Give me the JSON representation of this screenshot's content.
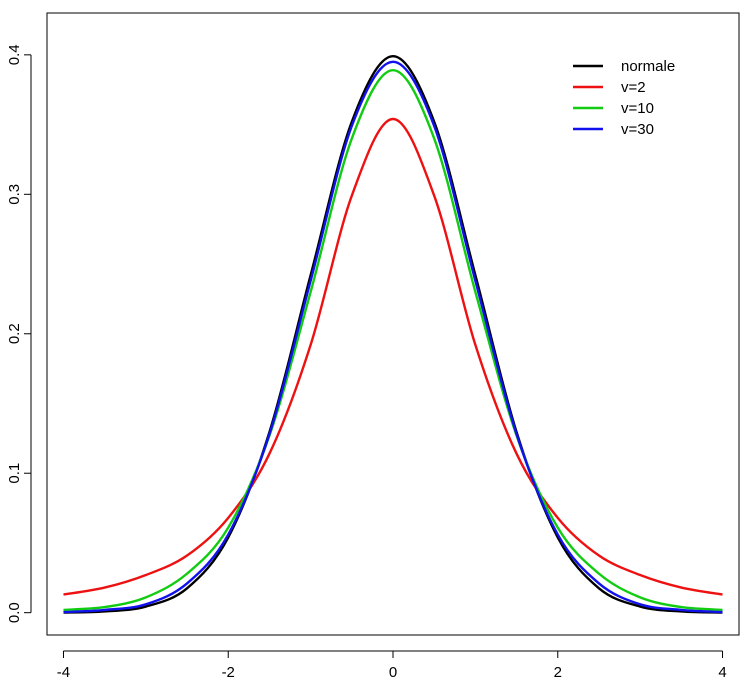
{
  "chart_data": {
    "type": "line",
    "title": "",
    "xlabel": "",
    "ylabel": "",
    "xlim": [
      -4.2,
      4.2
    ],
    "ylim": [
      -0.016,
      0.43
    ],
    "x_ticks": [
      -4,
      -2,
      0,
      2,
      4
    ],
    "x_tick_labels": [
      "-4",
      "-2",
      "0",
      "2",
      "4"
    ],
    "y_ticks": [
      0.0,
      0.1,
      0.2,
      0.3,
      0.4
    ],
    "y_tick_labels": [
      "0.0",
      "0.1",
      "0.2",
      "0.3",
      "0.4"
    ],
    "grid": false,
    "legend_position": "top-right",
    "x": [
      -4,
      -3.5,
      -3,
      -2.5,
      -2,
      -1.5,
      -1,
      -0.5,
      0,
      0.5,
      1,
      1.5,
      2,
      2.5,
      3,
      3.5,
      4
    ],
    "series": [
      {
        "name": "normale",
        "color": "#000000",
        "values": [
          0.0001,
          0.0009,
          0.0044,
          0.0175,
          0.054,
          0.1295,
          0.242,
          0.352,
          0.399,
          0.352,
          0.242,
          0.1295,
          0.054,
          0.0175,
          0.0044,
          0.0009,
          0.0001
        ]
      },
      {
        "name": "v=2",
        "color": "#ee1111",
        "values": [
          0.013,
          0.018,
          0.027,
          0.041,
          0.068,
          0.114,
          0.192,
          0.299,
          0.354,
          0.299,
          0.192,
          0.114,
          0.068,
          0.041,
          0.027,
          0.018,
          0.013
        ]
      },
      {
        "name": "v=10",
        "color": "#11cc11",
        "values": [
          0.002,
          0.004,
          0.011,
          0.028,
          0.061,
          0.127,
          0.23,
          0.34,
          0.389,
          0.34,
          0.23,
          0.127,
          0.061,
          0.028,
          0.011,
          0.004,
          0.002
        ]
      },
      {
        "name": "v=30",
        "color": "#1111ee",
        "values": [
          0.0004,
          0.002,
          0.006,
          0.021,
          0.056,
          0.128,
          0.238,
          0.349,
          0.395,
          0.349,
          0.238,
          0.128,
          0.056,
          0.021,
          0.006,
          0.002,
          0.0004
        ]
      }
    ]
  }
}
